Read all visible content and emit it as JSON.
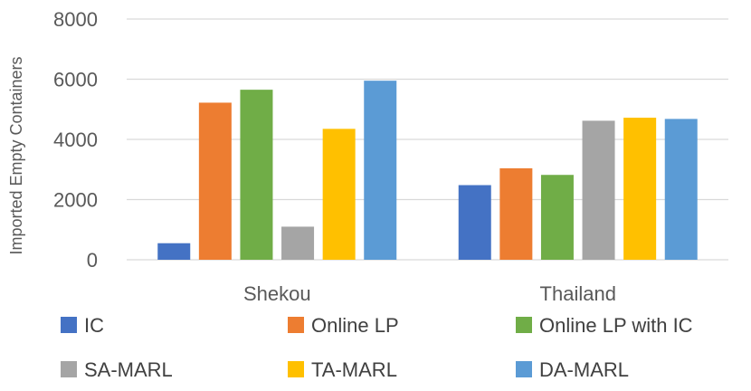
{
  "chart_data": {
    "type": "bar",
    "ylabel": "Imported Empty Containers",
    "ylim": [
      0,
      8000
    ],
    "yticks": [
      0,
      2000,
      4000,
      6000,
      8000
    ],
    "ytick_labels": [
      "0",
      "2000",
      "4000",
      "6000",
      "8000"
    ],
    "grid": true,
    "legend_position": "bottom",
    "categories": [
      "Shekou",
      "Thailand"
    ],
    "series": [
      {
        "name": "IC",
        "color": "#4472C4",
        "values": [
          550,
          2480
        ]
      },
      {
        "name": "Online LP",
        "color": "#ED7D31",
        "values": [
          5220,
          3040
        ]
      },
      {
        "name": "Online LP with IC",
        "color": "#70AD47",
        "values": [
          5650,
          2820
        ]
      },
      {
        "name": "SA-MARL",
        "color": "#A5A5A5",
        "values": [
          1100,
          4620
        ]
      },
      {
        "name": "TA-MARL",
        "color": "#FFC000",
        "values": [
          4350,
          4720
        ]
      },
      {
        "name": "DA-MARL",
        "color": "#5B9BD5",
        "values": [
          5950,
          4680
        ]
      }
    ]
  }
}
